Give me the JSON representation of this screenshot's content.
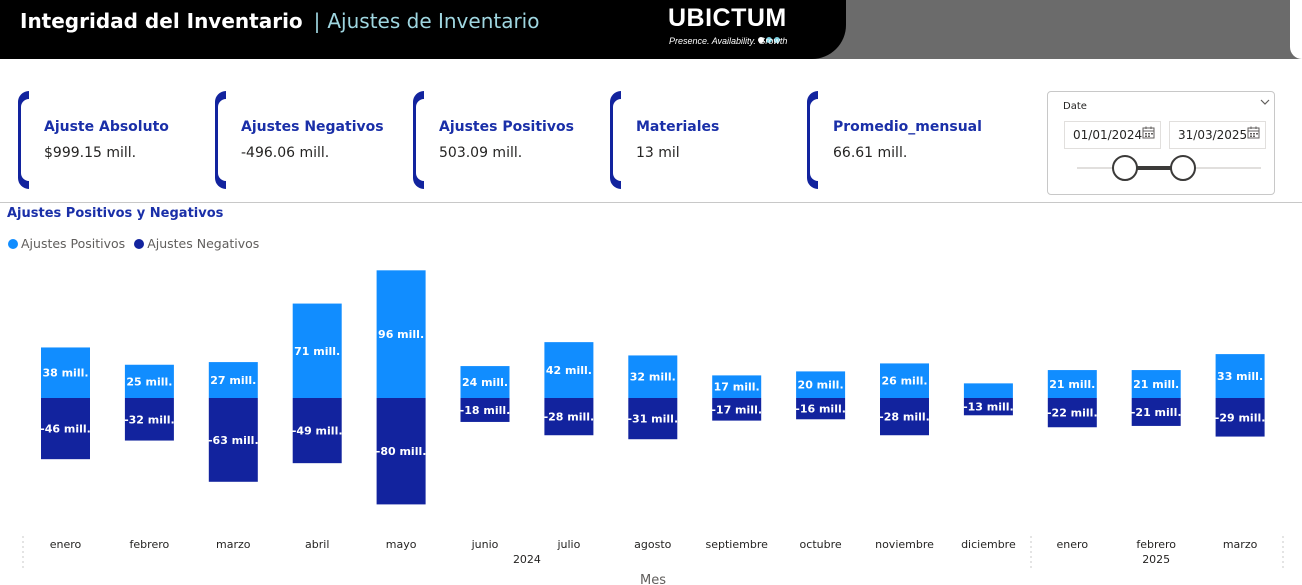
{
  "header": {
    "title": "Integridad del Inventario",
    "separator": "|",
    "subtitle": "Ajustes de Inventario",
    "logo_text": "UBICTUM",
    "logo_tagline": "Presence. Availability. Growth"
  },
  "kpis": [
    {
      "label": "Ajuste Absoluto",
      "value": "$999.15 mill."
    },
    {
      "label": "Ajustes Negativos",
      "value": "-496.06 mill."
    },
    {
      "label": "Ajustes Positivos",
      "value": "503.09 mill."
    },
    {
      "label": "Materiales",
      "value": "13 mil"
    },
    {
      "label": "Promedio_mensual",
      "value": "66.61 mill."
    }
  ],
  "date_slicer": {
    "label": "Date",
    "start": "01/01/2024",
    "end": "31/03/2025",
    "chevron_icon": "chevron-down-icon",
    "calendar_icon": "calendar-icon"
  },
  "colors": {
    "positive": "#118dff",
    "negative": "#12239e",
    "accent": "#1a2fa8"
  },
  "chart_data": {
    "type": "bar",
    "stacked": "diverging",
    "title": "Ajustes Positivos y Negativos",
    "xlabel": "Mes",
    "ylabel": "",
    "legend_position": "top-left",
    "grid": false,
    "categories": [
      "enero",
      "febrero",
      "marzo",
      "abril",
      "mayo",
      "junio",
      "julio",
      "agosto",
      "septiembre",
      "octubre",
      "noviembre",
      "diciembre",
      "enero",
      "febrero",
      "marzo"
    ],
    "year_labels": [
      {
        "label": "2024",
        "first": 0,
        "last": 11
      },
      {
        "label": "2025",
        "first": 12,
        "last": 14
      }
    ],
    "series": [
      {
        "name": "Ajustes Positivos",
        "values": [
          38,
          25,
          27,
          71,
          96,
          24,
          42,
          32,
          17,
          20,
          26,
          11,
          21,
          21,
          33
        ],
        "labels": [
          "38 mill.",
          "25 mill.",
          "27 mill.",
          "71 mill.",
          "96 mill.",
          "24 mill.",
          "42 mill.",
          "32 mill.",
          "17 mill.",
          "20 mill.",
          "26 mill.",
          "",
          "21 mill.",
          "21 mill.",
          "33 mill."
        ]
      },
      {
        "name": "Ajustes Negativos",
        "values": [
          -46,
          -32,
          -63,
          -49,
          -80,
          -18,
          -28,
          -31,
          -17,
          -16,
          -28,
          -13,
          -22,
          -21,
          -29
        ],
        "labels": [
          "-46 mill.",
          "-32 mill.",
          "-63 mill.",
          "-49 mill.",
          "-80 mill.",
          "-18 mill.",
          "-28 mill.",
          "-31 mill.",
          "-17 mill.",
          "-16 mill.",
          "-28 mill.",
          "-13 mill.",
          "-22 mill.",
          "-21 mill.",
          "-29 mill."
        ]
      }
    ],
    "unit": "mill."
  }
}
